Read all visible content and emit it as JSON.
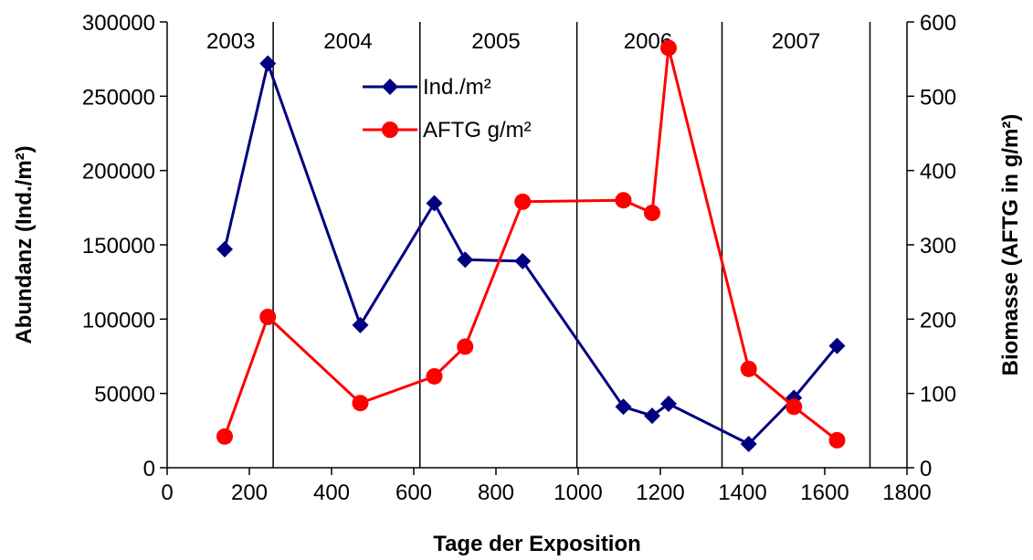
{
  "chart_data": {
    "type": "line",
    "xlabel": "Tage der Exposition",
    "ylabel": "Abundanz (Ind./m²)",
    "y2label": "Biomasse (AFTG in g/m²)",
    "xlim": [
      0,
      1800
    ],
    "ylim": [
      0,
      300000
    ],
    "y2lim": [
      0,
      600
    ],
    "x_ticks": [
      0,
      200,
      400,
      600,
      800,
      1000,
      1200,
      1400,
      1600,
      1800
    ],
    "y_ticks": [
      0,
      50000,
      100000,
      150000,
      200000,
      250000,
      300000
    ],
    "y2_ticks": [
      0,
      100,
      200,
      300,
      400,
      500,
      600
    ],
    "grid": false,
    "legend_position": "top-center",
    "year_dividers": [
      258,
      615,
      997,
      1350,
      1710
    ],
    "year_labels": [
      {
        "label": "2003",
        "x": 155
      },
      {
        "label": "2004",
        "x": 440
      },
      {
        "label": "2005",
        "x": 800
      },
      {
        "label": "2006",
        "x": 1170
      },
      {
        "label": "2007",
        "x": 1530
      }
    ],
    "series": [
      {
        "name": "Ind./m²",
        "axis": "left",
        "color": "#000080",
        "marker": "diamond",
        "x": [
          140,
          245,
          470,
          650,
          725,
          865,
          1110,
          1180,
          1220,
          1415,
          1525,
          1630
        ],
        "y": [
          147000,
          272000,
          96000,
          178000,
          140000,
          139000,
          41000,
          35000,
          43000,
          16000,
          47000,
          82000
        ]
      },
      {
        "name": "AFTG g/m²",
        "axis": "right",
        "color": "#ff0000",
        "marker": "circle",
        "x": [
          140,
          245,
          470,
          650,
          725,
          865,
          1110,
          1180,
          1220,
          1415,
          1525,
          1630
        ],
        "y": [
          42,
          203,
          87,
          123,
          163,
          358,
          360,
          343,
          565,
          133,
          82,
          37
        ]
      }
    ]
  }
}
